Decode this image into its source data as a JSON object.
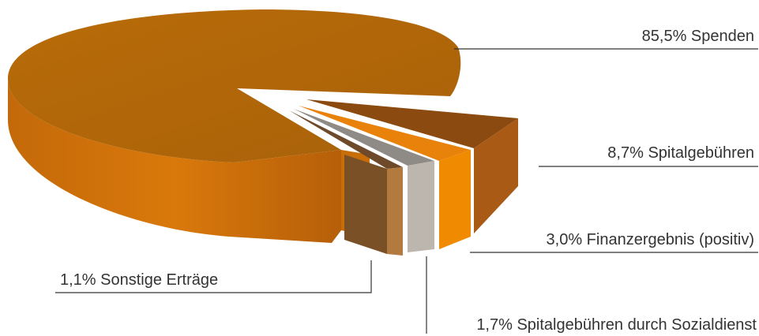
{
  "chart_data": {
    "type": "pie",
    "style": "3d-exploded",
    "title": "",
    "slices": [
      {
        "label": "85,5% Spenden",
        "value": 85.5,
        "color": "#d9790b"
      },
      {
        "label": "8,7% Spitalgebühren",
        "value": 8.7,
        "color": "#a95a14"
      },
      {
        "label": "3,0% Finanzergebnis (positiv)",
        "value": 3.0,
        "color": "#f08a00"
      },
      {
        "label": "1,7% Spitalgebühren durch Sozialdienst",
        "value": 1.7,
        "color": "#bdb6ae"
      },
      {
        "label": "1,1% Sonstige Erträge",
        "value": 1.1,
        "color": "#8a5a2c"
      }
    ]
  }
}
